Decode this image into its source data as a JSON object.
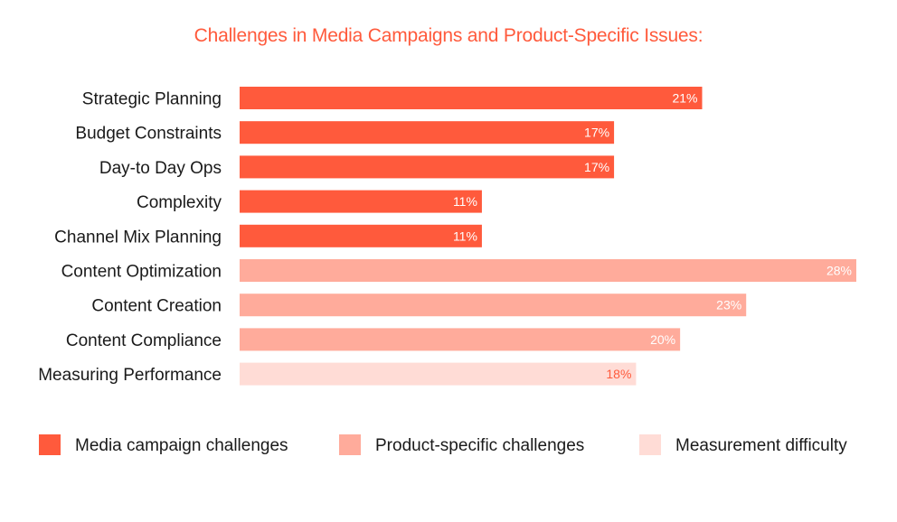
{
  "chart_data": {
    "type": "bar",
    "orientation": "horizontal",
    "title": "Challenges in Media Campaigns and Product-Specific Issues:",
    "categories": [
      "Strategic Planning",
      "Budget Constraints",
      "Day-to Day Ops",
      "Complexity",
      "Channel Mix Planning",
      "Content Optimization",
      "Content Creation",
      "Content Compliance",
      "Measuring Performance"
    ],
    "values": [
      21,
      17,
      17,
      11,
      11,
      28,
      23,
      20,
      18
    ],
    "value_labels": [
      "21%",
      "17%",
      "17%",
      "11%",
      "11%",
      "28%",
      "23%",
      "20%",
      "18%"
    ],
    "bar_groups": [
      0,
      0,
      0,
      0,
      0,
      1,
      1,
      1,
      2
    ],
    "unit": "%",
    "xlim": [
      0,
      28
    ],
    "grid": false,
    "legend_position": "bottom",
    "groups": [
      {
        "name": "Media campaign challenges",
        "color": "#ff5a3c",
        "label_color": "#ffffff"
      },
      {
        "name": "Product-specific challenges",
        "color": "#ffab9b",
        "label_color": "#ffffff"
      },
      {
        "name": "Measurement difficulty",
        "color": "#ffdcd6",
        "label_color": "#ff5a3c"
      }
    ]
  }
}
